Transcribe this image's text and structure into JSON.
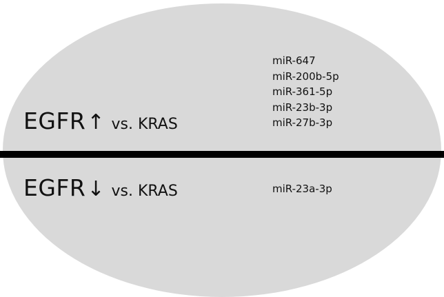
{
  "groups": [
    {
      "gene": "EGFR",
      "direction_arrow": "↑",
      "comparison": "vs. KRAS",
      "mirnas": [
        "miR-647",
        "miR-200b-5p",
        "miR-361-5p",
        "miR-23b-3p",
        "miR-27b-3p"
      ]
    },
    {
      "gene": "EGFR",
      "direction_arrow": "↓",
      "comparison": "vs. KRAS",
      "mirnas": [
        "miR-23a-3p"
      ]
    }
  ],
  "colors": {
    "ellipse_fill": "#d9d9d9",
    "divider": "#000000",
    "text": "#111111"
  }
}
